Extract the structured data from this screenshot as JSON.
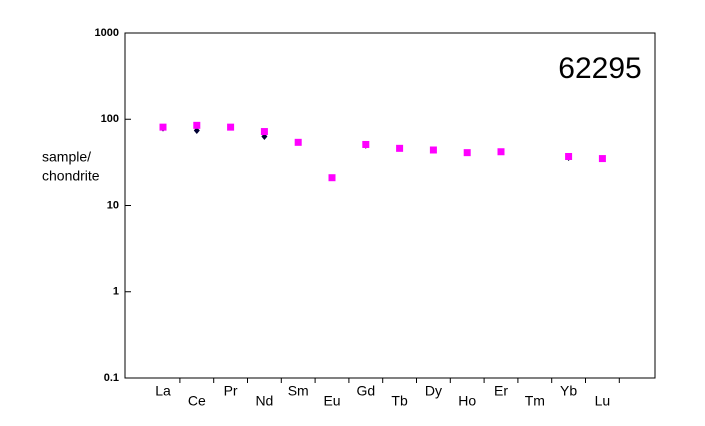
{
  "chart_data": {
    "type": "scatter",
    "annotation": "62295",
    "ylabel_lines": [
      "sample/",
      "chondrite"
    ],
    "categories": [
      "La",
      "Ce",
      "Pr",
      "Nd",
      "Sm",
      "Eu",
      "Gd",
      "Tb",
      "Dy",
      "Ho",
      "Er",
      "Tm",
      "Yb",
      "Lu"
    ],
    "series": [
      {
        "name": "black",
        "color": "#000033",
        "marker": "diamond",
        "values": [
          79,
          74,
          null,
          63,
          null,
          null,
          50,
          null,
          null,
          null,
          null,
          null,
          36,
          null
        ]
      },
      {
        "name": "magenta",
        "color": "#ff00ff",
        "marker": "square",
        "values": [
          81,
          85,
          81,
          72,
          54,
          21,
          51,
          46,
          44,
          41,
          42,
          null,
          37,
          35
        ]
      }
    ],
    "ylim": [
      0.1,
      1000
    ],
    "yticks": [
      0.1,
      1,
      10,
      100,
      1000
    ],
    "log_y": true
  }
}
